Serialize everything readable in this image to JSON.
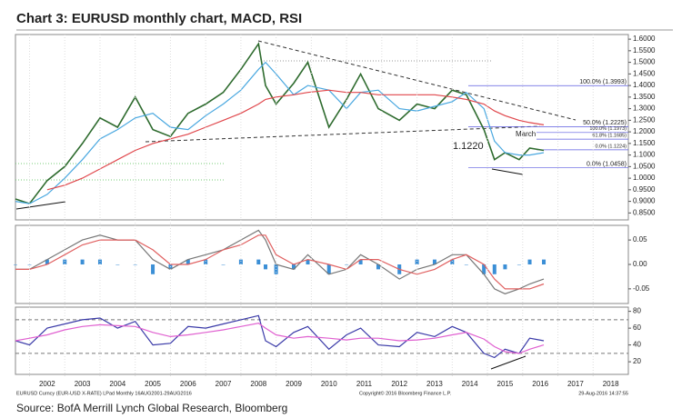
{
  "title": "Chart 3: EURUSD monthly chart, MACD, RSI",
  "source": "Source: BofA Merrill Lynch Global Research, Bloomberg",
  "footer": {
    "left": "EURUSD Curncy (EUR-USD X-RATE) LPad Monthly 16AUG2001-29AUG2016",
    "center": "Copyright© 2016 Bloomberg Finance L.P.",
    "right": "29-Aug-2016 14:37:55"
  },
  "chart_data": [
    {
      "type": "line",
      "xlim": [
        2001.6,
        2019.0
      ],
      "ylim": [
        0.82,
        1.62
      ],
      "yticks": [
        {
          "value": 0.85,
          "label": "0.8500"
        },
        {
          "value": 0.9,
          "label": "0.9000"
        },
        {
          "value": 0.95,
          "label": "0.9500"
        },
        {
          "value": 1.0,
          "label": "1.0000"
        },
        {
          "value": 1.05,
          "label": "1.0500"
        },
        {
          "value": 1.1,
          "label": "1.1000"
        },
        {
          "value": 1.15,
          "label": "1.1500"
        },
        {
          "value": 1.2,
          "label": "1.2000"
        },
        {
          "value": 1.25,
          "label": "1.2500"
        },
        {
          "value": 1.3,
          "label": "1.3000"
        },
        {
          "value": 1.35,
          "label": "1.3500"
        },
        {
          "value": 1.4,
          "label": "1.4000"
        },
        {
          "value": 1.45,
          "label": "1.4500"
        },
        {
          "value": 1.5,
          "label": "1.5000"
        },
        {
          "value": 1.55,
          "label": "1.5500"
        },
        {
          "value": 1.6,
          "label": "1.6000"
        }
      ],
      "x": [
        2001.6,
        2002.0,
        2002.5,
        2003.0,
        2003.5,
        2004.0,
        2004.5,
        2005.0,
        2005.5,
        2006.0,
        2006.5,
        2007.0,
        2007.5,
        2008.0,
        2008.5,
        2008.7,
        2009.0,
        2009.5,
        2009.9,
        2010.5,
        2011.0,
        2011.4,
        2011.9,
        2012.5,
        2013.0,
        2013.5,
        2014.0,
        2014.4,
        2014.9,
        2015.2,
        2015.5,
        2015.9,
        2016.2,
        2016.6
      ],
      "series": [
        {
          "color": "#2e6b2e",
          "values": [
            0.91,
            0.89,
            0.99,
            1.05,
            1.15,
            1.26,
            1.22,
            1.35,
            1.21,
            1.18,
            1.28,
            1.32,
            1.37,
            1.47,
            1.58,
            1.4,
            1.32,
            1.41,
            1.5,
            1.22,
            1.34,
            1.45,
            1.3,
            1.25,
            1.32,
            1.3,
            1.38,
            1.36,
            1.21,
            1.08,
            1.11,
            1.08,
            1.13,
            1.12
          ]
        },
        {
          "color": "#4aa8e0",
          "values": [
            0.9,
            0.89,
            0.93,
            1.0,
            1.08,
            1.17,
            1.21,
            1.26,
            1.28,
            1.22,
            1.21,
            1.27,
            1.32,
            1.38,
            1.47,
            1.5,
            1.45,
            1.36,
            1.4,
            1.38,
            1.3,
            1.37,
            1.38,
            1.3,
            1.29,
            1.31,
            1.33,
            1.37,
            1.3,
            1.16,
            1.11,
            1.1,
            1.1,
            1.11
          ]
        },
        {
          "color": "#e0474c",
          "values": [
            null,
            null,
            0.95,
            0.97,
            1.0,
            1.04,
            1.08,
            1.12,
            1.15,
            1.17,
            1.19,
            1.22,
            1.25,
            1.28,
            1.32,
            1.34,
            1.35,
            1.36,
            1.37,
            1.38,
            1.37,
            1.37,
            1.36,
            1.36,
            1.36,
            1.36,
            1.35,
            1.34,
            1.32,
            1.29,
            1.27,
            1.25,
            1.24,
            1.23
          ]
        }
      ],
      "levels": [
        {
          "label": "100.0% (1.3993)",
          "value": 1.3993
        },
        {
          "label": "50.0% (1.2225)",
          "value": 1.2225
        },
        {
          "label": "100.0% (1.1973)",
          "value": 1.1973
        },
        {
          "label": "61.8% (1.1685)",
          "value": 1.1685
        },
        {
          "label": "0.0% (1.1224)",
          "value": 1.1224
        },
        {
          "label": "0.0% (1.0458)",
          "value": 1.0458
        }
      ],
      "annotations": [
        "1.1220",
        "March"
      ]
    },
    {
      "type": "line",
      "xlim": [
        2001.6,
        2019.0
      ],
      "ylim": [
        -0.08,
        0.08
      ],
      "yticks": [
        -0.05,
        {
          "value": 0,
          "label": "0.00"
        },
        0.05
      ],
      "x": [
        2001.6,
        2002.0,
        2002.5,
        2003.0,
        2003.5,
        2004.0,
        2004.5,
        2005.0,
        2005.5,
        2006.0,
        2006.5,
        2007.0,
        2007.5,
        2008.0,
        2008.5,
        2008.7,
        2009.0,
        2009.5,
        2009.9,
        2010.5,
        2011.0,
        2011.4,
        2011.9,
        2012.5,
        2013.0,
        2013.5,
        2014.0,
        2014.4,
        2014.9,
        2015.2,
        2015.5,
        2015.9,
        2016.2,
        2016.6
      ],
      "series": [
        {
          "color": "#3b8fd6",
          "style": "bar",
          "values": [
            0,
            0,
            0.01,
            0.01,
            0.01,
            0.01,
            0,
            0,
            -0.02,
            -0.01,
            0.01,
            0.01,
            0,
            0.01,
            0.01,
            -0.01,
            -0.02,
            -0.01,
            0.01,
            -0.02,
            0,
            0.01,
            -0.01,
            -0.02,
            0.01,
            0.01,
            0.01,
            0,
            -0.02,
            -0.02,
            -0.01,
            0,
            0.01,
            0.01
          ]
        },
        {
          "color": "#777777",
          "values": [
            -0.01,
            -0.01,
            0.01,
            0.03,
            0.05,
            0.06,
            0.05,
            0.05,
            0.01,
            -0.01,
            0.01,
            0.02,
            0.03,
            0.05,
            0.07,
            0.05,
            0.0,
            -0.01,
            0.02,
            -0.02,
            -0.01,
            0.02,
            0.0,
            -0.03,
            -0.01,
            0.0,
            0.02,
            0.02,
            -0.02,
            -0.05,
            -0.06,
            -0.05,
            -0.04,
            -0.03
          ]
        },
        {
          "color": "#e06060",
          "values": [
            -0.01,
            -0.01,
            0.0,
            0.02,
            0.04,
            0.05,
            0.05,
            0.05,
            0.03,
            0.0,
            0.0,
            0.01,
            0.03,
            0.04,
            0.06,
            0.06,
            0.02,
            0.0,
            0.01,
            0.0,
            -0.01,
            0.01,
            0.01,
            -0.01,
            -0.02,
            -0.01,
            0.01,
            0.02,
            0.0,
            -0.03,
            -0.05,
            -0.05,
            -0.05,
            -0.04
          ]
        }
      ]
    },
    {
      "type": "line",
      "xlim": [
        2001.6,
        2019.0
      ],
      "ylim": [
        5,
        85
      ],
      "yticks": [
        20,
        40,
        60,
        80
      ],
      "xticks": [
        2002,
        2003,
        2004,
        2005,
        2006,
        2007,
        2008,
        2009,
        2010,
        2011,
        2012,
        2013,
        2014,
        2015,
        2016,
        2017,
        2018
      ],
      "reference_lines": [
        70,
        30
      ],
      "x": [
        2001.6,
        2002.0,
        2002.5,
        2003.0,
        2003.5,
        2004.0,
        2004.5,
        2005.0,
        2005.5,
        2006.0,
        2006.5,
        2007.0,
        2007.5,
        2008.0,
        2008.5,
        2008.7,
        2009.0,
        2009.5,
        2009.9,
        2010.5,
        2011.0,
        2011.4,
        2011.9,
        2012.5,
        2013.0,
        2013.5,
        2014.0,
        2014.4,
        2014.9,
        2015.2,
        2015.5,
        2015.9,
        2016.2,
        2016.6
      ],
      "series": [
        {
          "color": "#3a3aa8",
          "values": [
            45,
            40,
            60,
            65,
            70,
            72,
            60,
            68,
            40,
            42,
            62,
            60,
            65,
            70,
            75,
            45,
            38,
            55,
            62,
            35,
            52,
            60,
            40,
            38,
            55,
            50,
            62,
            55,
            30,
            25,
            35,
            30,
            48,
            45
          ]
        },
        {
          "color": "#e060d0",
          "values": [
            45,
            48,
            52,
            58,
            62,
            64,
            63,
            62,
            55,
            50,
            52,
            55,
            58,
            62,
            66,
            60,
            52,
            48,
            50,
            48,
            46,
            48,
            48,
            45,
            46,
            48,
            52,
            55,
            47,
            38,
            32,
            30,
            35,
            40
          ]
        }
      ]
    }
  ]
}
